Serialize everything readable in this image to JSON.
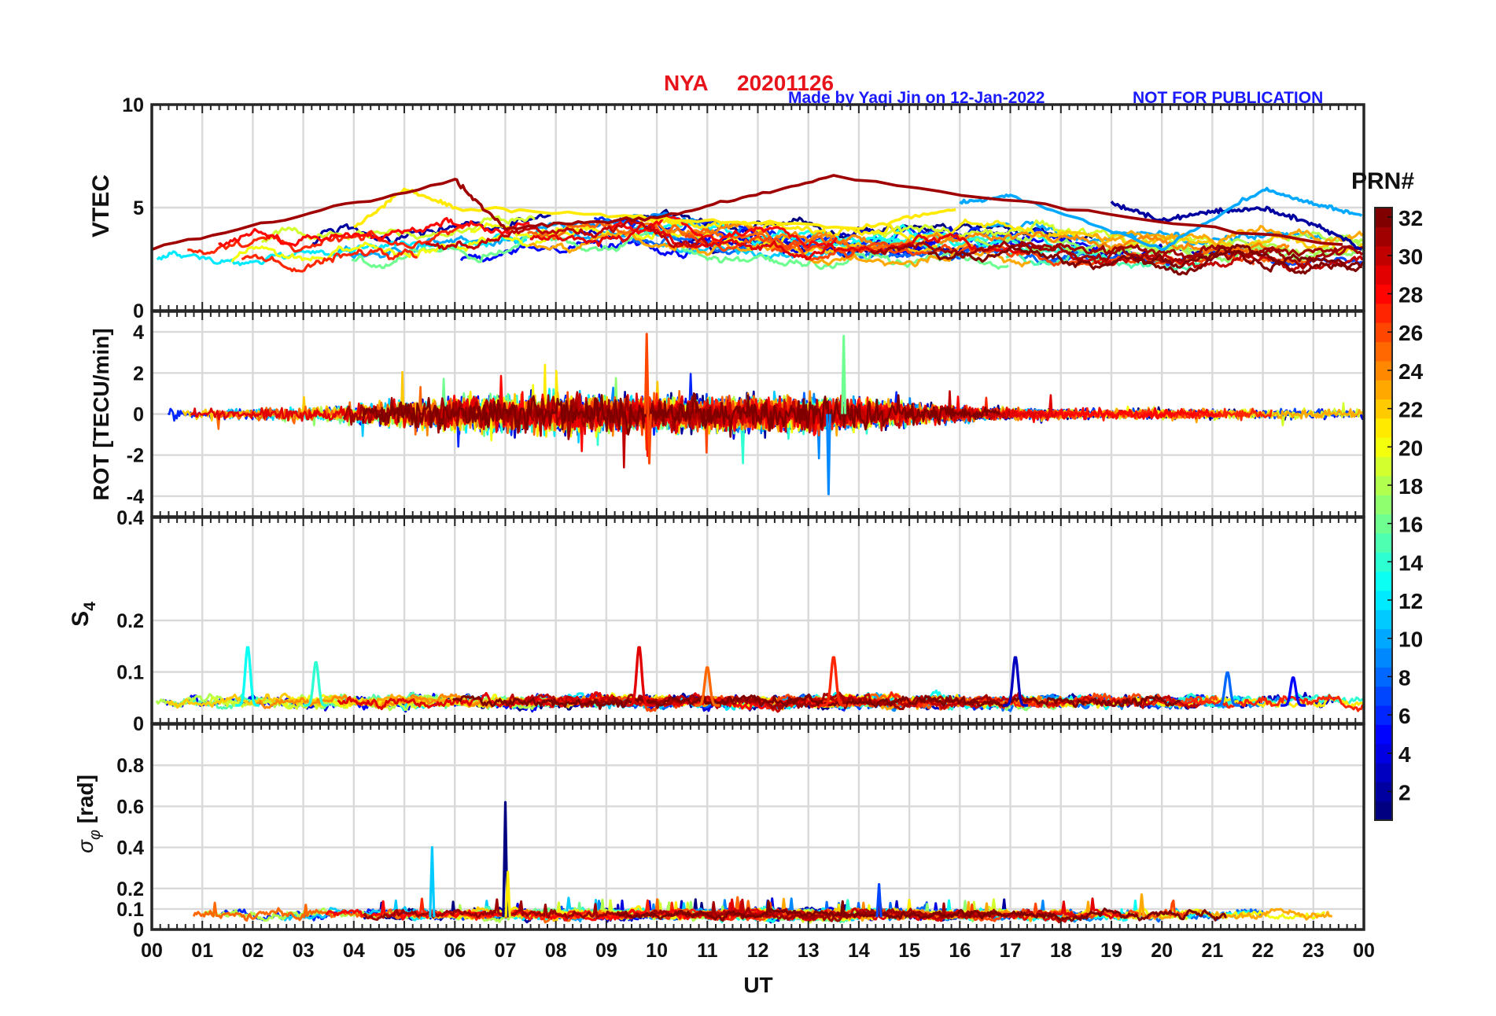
{
  "header": {
    "station": "NYA",
    "date": "20201126",
    "credit": "Made by Yaqi Jin on 12-Jan-2022",
    "notice": "NOT FOR PUBLICATION"
  },
  "colors": {
    "title": "#e8141c",
    "credit": "#1a1aff",
    "grid": "#d9d9d9",
    "axis": "#262626"
  },
  "colorbar": {
    "label": "PRN#",
    "colormap": "jet",
    "range": [
      1,
      32
    ],
    "ticks": [
      "2",
      "4",
      "6",
      "8",
      "10",
      "12",
      "14",
      "16",
      "18",
      "20",
      "22",
      "24",
      "26",
      "28",
      "30",
      "32"
    ]
  },
  "chart_data": [
    {
      "type": "line",
      "panel": "vtec",
      "ylabel": "VTEC",
      "ylim": [
        0,
        10
      ],
      "yticks": [
        "0",
        "5",
        "10"
      ],
      "grid": true,
      "x_range_hours": [
        0,
        24
      ],
      "series_count": 32,
      "series": [
        {
          "prn": 2,
          "x": [
            19,
            20,
            21,
            22,
            23,
            24
          ],
          "y": [
            5.2,
            4.4,
            4.8,
            5.0,
            4.2,
            3.0
          ]
        },
        {
          "prn": 10,
          "x": [
            16,
            17,
            20,
            22,
            23,
            24
          ],
          "y": [
            5.2,
            5.6,
            3.0,
            5.9,
            5.2,
            4.6
          ]
        },
        {
          "prn": 21,
          "x": [
            4,
            5,
            6,
            10,
            14,
            16
          ],
          "y": [
            4.0,
            5.9,
            5.0,
            4.5,
            4.0,
            5.0
          ]
        },
        {
          "prn": 31,
          "x": [
            0,
            6,
            7,
            10,
            13.5,
            24
          ],
          "y": [
            3.0,
            6.3,
            4.0,
            4.5,
            6.5,
            3.0
          ]
        }
      ]
    },
    {
      "type": "line",
      "panel": "rot",
      "ylabel": "ROT [TECU/min]",
      "ylim": [
        -5,
        5
      ],
      "yticks": [
        "4",
        "2",
        "0",
        "-2",
        "-4"
      ],
      "grid": true,
      "x_range_hours": [
        0,
        24
      ],
      "series_count": 32,
      "notable": [
        {
          "prn": 26,
          "x": 9.8,
          "y": 3.9
        },
        {
          "prn": 26,
          "x": 9.85,
          "y": -2.4
        },
        {
          "prn": 16,
          "x": 13.7,
          "y": 3.8
        },
        {
          "prn": 9,
          "x": 13.4,
          "y": -3.9
        }
      ]
    },
    {
      "type": "line",
      "panel": "s4",
      "ylabel": "S4",
      "ylim": [
        0,
        0.4
      ],
      "yticks": [
        "0",
        "0.1",
        "0.2",
        "0.4"
      ],
      "grid": true,
      "x_range_hours": [
        0,
        24
      ],
      "series_count": 32,
      "notable": [
        {
          "prn": 13,
          "x": 1.9,
          "y": 0.15
        },
        {
          "prn": 14,
          "x": 3.25,
          "y": 0.12
        },
        {
          "prn": 29,
          "x": 9.65,
          "y": 0.15
        },
        {
          "prn": 25,
          "x": 11.0,
          "y": 0.11
        },
        {
          "prn": 27,
          "x": 13.5,
          "y": 0.13
        },
        {
          "prn": 3,
          "x": 17.1,
          "y": 0.13
        },
        {
          "prn": 8,
          "x": 21.3,
          "y": 0.1
        },
        {
          "prn": 5,
          "x": 22.6,
          "y": 0.09
        }
      ]
    },
    {
      "type": "line",
      "panel": "sigma_phi",
      "ylabel": "σ_φ [rad]",
      "ylim": [
        0,
        1
      ],
      "yticks": [
        "0",
        "0.1",
        "0.2",
        "0.4",
        "0.6",
        "0.8"
      ],
      "grid": true,
      "x_range_hours": [
        0,
        24
      ],
      "series_count": 32,
      "notable": [
        {
          "prn": 1,
          "x": 7.0,
          "y": 0.62
        },
        {
          "prn": 11,
          "x": 5.55,
          "y": 0.4
        },
        {
          "prn": 21,
          "x": 7.05,
          "y": 0.28
        },
        {
          "prn": 7,
          "x": 14.4,
          "y": 0.22
        },
        {
          "prn": 23,
          "x": 19.6,
          "y": 0.17
        }
      ]
    }
  ],
  "xaxis": {
    "label": "UT",
    "ticks": [
      "00",
      "01",
      "02",
      "03",
      "04",
      "05",
      "06",
      "07",
      "08",
      "09",
      "10",
      "11",
      "12",
      "13",
      "14",
      "15",
      "16",
      "17",
      "18",
      "19",
      "20",
      "21",
      "22",
      "23",
      "00"
    ]
  }
}
